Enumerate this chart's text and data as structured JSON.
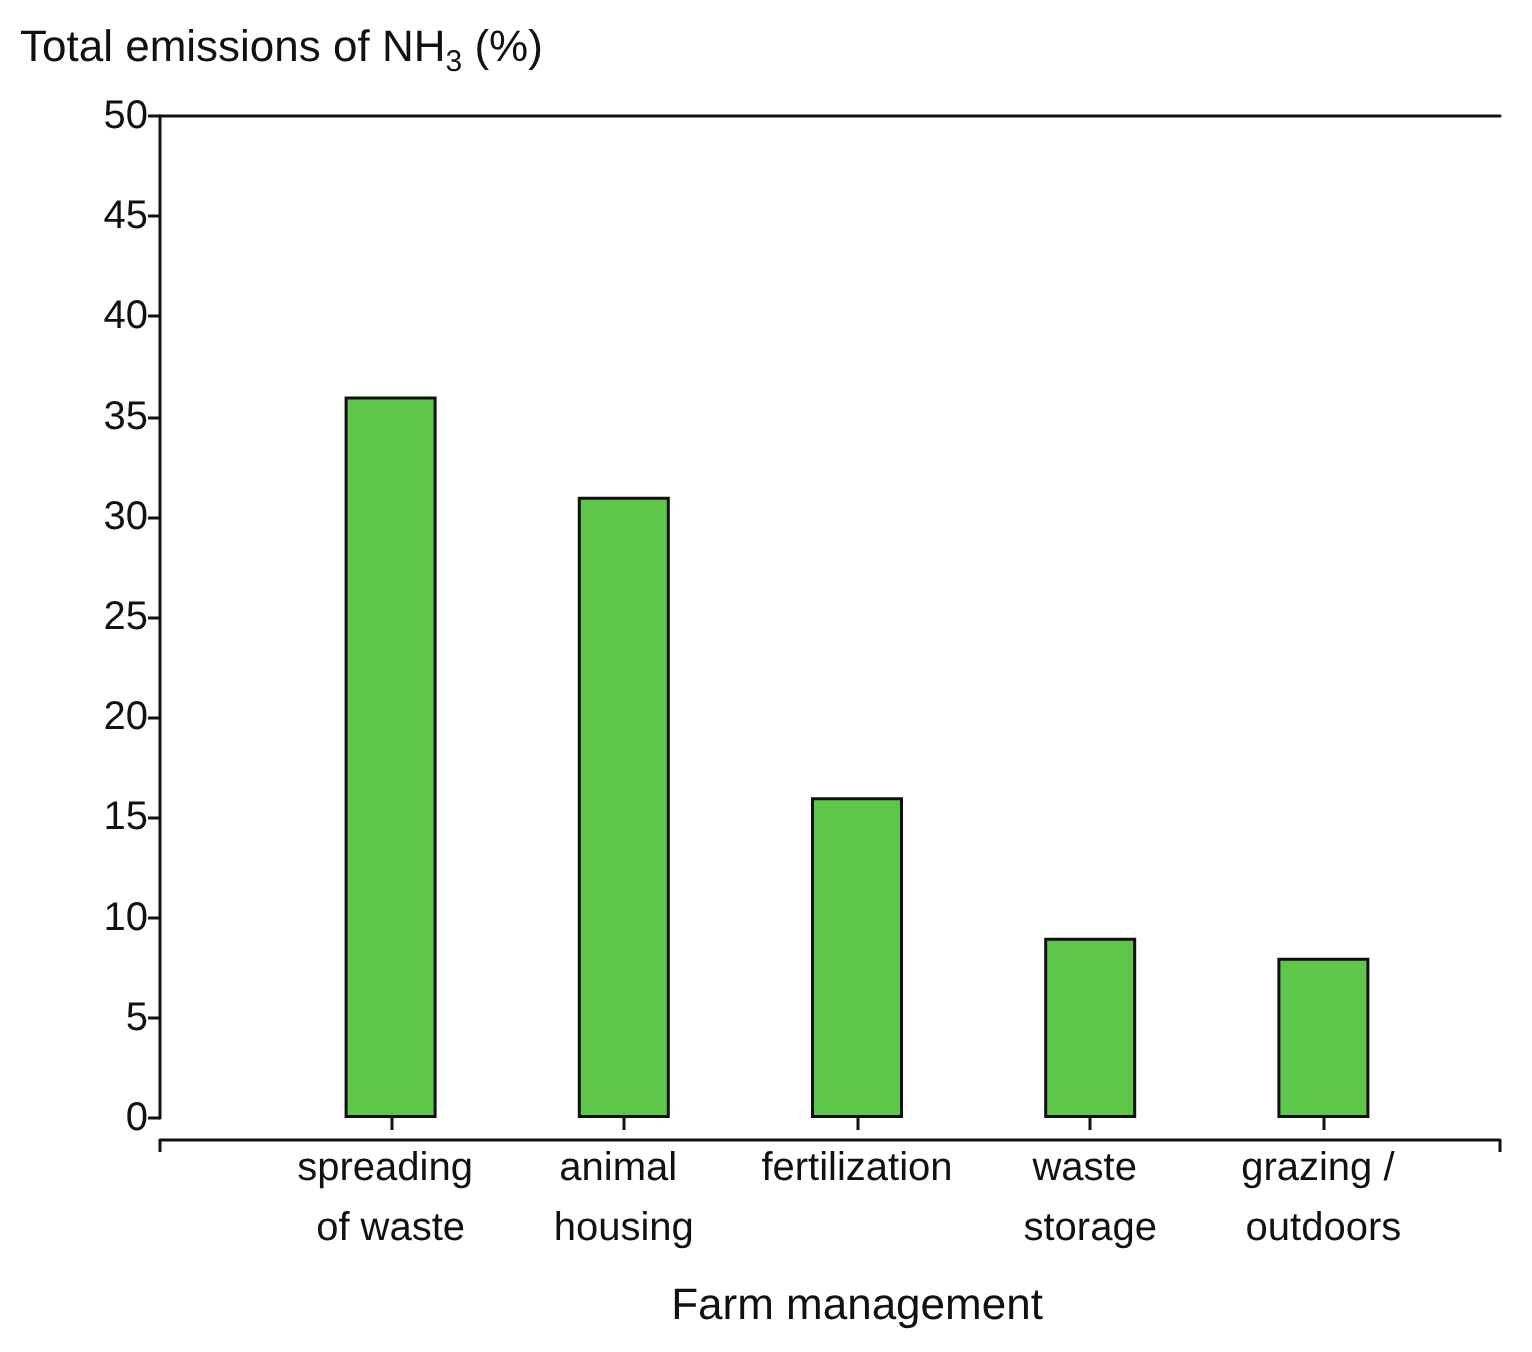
{
  "chart_data": {
    "type": "bar",
    "ylabel": "Total emissions of NH$_{3}$ (%)",
    "xlabel": "Farm management",
    "categories": [
      "spreading of waste",
      "animal housing",
      "fertilization",
      "waste storage",
      "grazing / outdoors"
    ],
    "values": [
      36,
      31,
      16,
      9,
      8
    ],
    "color": "#5ec64b",
    "ylim": [
      0,
      50
    ],
    "yticks": [
      0,
      5,
      10,
      15,
      20,
      25,
      30,
      35,
      40,
      45,
      50
    ],
    "grid": false
  }
}
